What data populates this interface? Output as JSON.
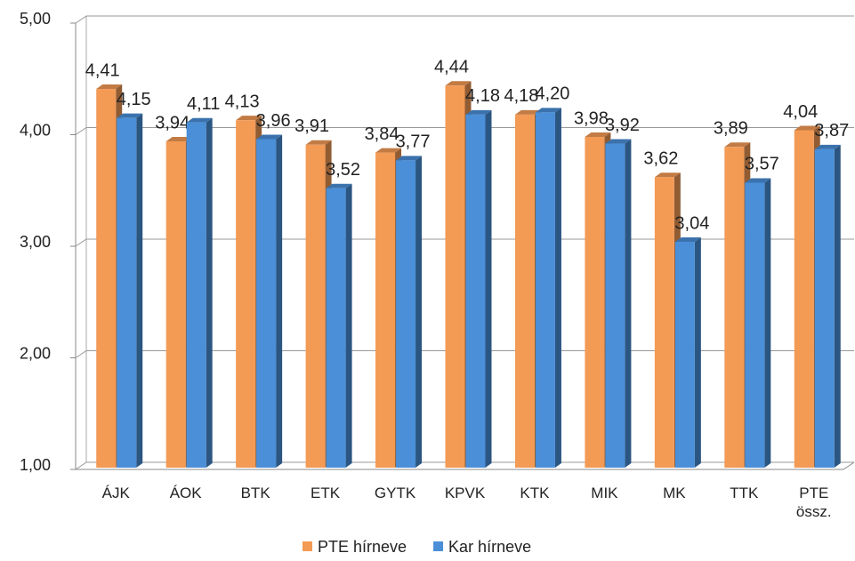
{
  "chart_data": {
    "type": "bar3d",
    "categories": [
      "ÁJK",
      "ÁOK",
      "BTK",
      "ETK",
      "GYTK",
      "KPVK",
      "KTK",
      "MIK",
      "MK",
      "TTK",
      "PTE össz."
    ],
    "series": [
      {
        "name": "PTE hírneve",
        "color": "#f39a55",
        "values": [
          4.41,
          3.94,
          4.13,
          3.91,
          3.84,
          4.44,
          4.18,
          3.98,
          3.62,
          3.89,
          4.04
        ],
        "value_labels": [
          "4,41",
          "3,94",
          "4,13",
          "3,91",
          "3,84",
          "4,44",
          "4,18",
          "3,98",
          "3,62",
          "3,89",
          "4,04"
        ]
      },
      {
        "name": "Kar hírneve",
        "color": "#4a8fd8",
        "values": [
          4.15,
          4.11,
          3.96,
          3.52,
          3.77,
          4.18,
          4.2,
          3.92,
          3.04,
          3.57,
          3.87
        ],
        "value_labels": [
          "4,15",
          "4,11",
          "3,96",
          "3,52",
          "3,77",
          "4,18",
          "4,20",
          "3,92",
          "3,04",
          "3,57",
          "3,87"
        ]
      }
    ],
    "ylim": [
      1,
      5
    ],
    "yticks": [
      {
        "value": 1,
        "label": "1,00"
      },
      {
        "value": 2,
        "label": "2,00"
      },
      {
        "value": 3,
        "label": "3,00"
      },
      {
        "value": 4,
        "label": "4,00"
      },
      {
        "value": 5,
        "label": "5,00"
      }
    ],
    "grid": true,
    "legend": "bottom"
  }
}
